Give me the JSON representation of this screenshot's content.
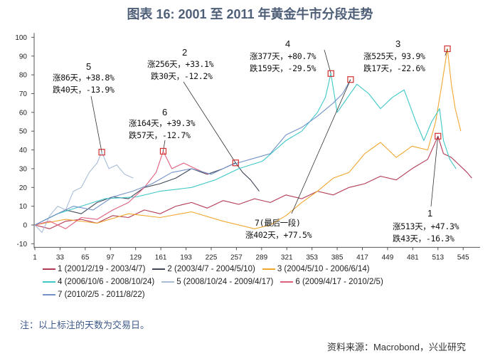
{
  "title": "图表 16: 2001 至 2011 年黄金牛市分段走势",
  "note": "注：以上标注的天数为交易日。",
  "source": "资料来源：Macrobond，兴业研究",
  "chart_data": {
    "type": "line",
    "title": "图表 16: 2001 至 2011 年黄金牛市分段走势",
    "xlabel": "",
    "ylabel": "",
    "xlim": [
      1,
      561
    ],
    "ylim": [
      -10,
      100
    ],
    "xticks": [
      1,
      33,
      65,
      97,
      129,
      161,
      193,
      225,
      257,
      289,
      321,
      353,
      385,
      417,
      449,
      481,
      513,
      545
    ],
    "yticks": [
      -10,
      0,
      10,
      20,
      30,
      40,
      50,
      60,
      70,
      80,
      90,
      100
    ],
    "grid": false,
    "legend": "bottom",
    "series": [
      {
        "name": "1 (2001/2/19 - 2003/4/7)",
        "color": "#b23a55",
        "x": [
          1,
          20,
          40,
          60,
          80,
          100,
          120,
          140,
          160,
          180,
          200,
          220,
          240,
          260,
          280,
          300,
          320,
          340,
          360,
          380,
          400,
          420,
          440,
          460,
          480,
          500,
          513,
          520,
          530,
          540,
          550,
          556
        ],
        "y": [
          0,
          -2,
          2,
          3,
          1,
          5,
          4,
          8,
          6,
          10,
          12,
          9,
          13,
          11,
          14,
          12,
          16,
          14,
          18,
          16,
          20,
          22,
          26,
          24,
          30,
          35,
          47.3,
          38,
          36,
          32,
          28,
          25
        ]
      },
      {
        "name": "2 (2003/4/7 - 2004/5/10)",
        "color": "#3f4858",
        "x": [
          1,
          20,
          40,
          60,
          80,
          100,
          120,
          140,
          160,
          180,
          200,
          220,
          240,
          256,
          265,
          275,
          286
        ],
        "y": [
          0,
          4,
          8,
          6,
          12,
          15,
          14,
          20,
          22,
          25,
          30,
          27,
          30,
          33.1,
          28,
          24,
          18
        ]
      },
      {
        "name": "3 (2004/5/10 - 2006/6/14)",
        "color": "#f0a830",
        "x": [
          1,
          40,
          80,
          120,
          160,
          200,
          240,
          280,
          300,
          320,
          340,
          360,
          380,
          400,
          420,
          440,
          460,
          480,
          500,
          510,
          518,
          525,
          530,
          535,
          542
        ],
        "y": [
          0,
          3,
          1,
          6,
          4,
          7,
          2,
          -2,
          0,
          5,
          12,
          18,
          25,
          28,
          38,
          44,
          36,
          42,
          40,
          55,
          75,
          93.9,
          75,
          62,
          50
        ]
      },
      {
        "name": "4 (2006/10/6 - 2008/10/24)",
        "color": "#3fc8c8",
        "x": [
          1,
          30,
          60,
          90,
          130,
          160,
          200,
          230,
          260,
          290,
          320,
          340,
          360,
          370,
          377,
          385,
          395,
          410,
          425,
          440,
          455,
          470,
          485,
          495,
          505,
          515,
          520,
          528,
          536
        ],
        "y": [
          0,
          6,
          10,
          14,
          15,
          18,
          20,
          24,
          30,
          34,
          45,
          50,
          60,
          68,
          80.7,
          60,
          66,
          75,
          70,
          62,
          68,
          72,
          55,
          45,
          55,
          62,
          45,
          35,
          30
        ]
      },
      {
        "name": "5 (2008/10/24 - 2009/4/17)",
        "color": "#a9bcd6",
        "x": [
          1,
          10,
          20,
          30,
          40,
          50,
          60,
          70,
          80,
          86,
          95,
          105,
          115,
          126
        ],
        "y": [
          0,
          -4,
          5,
          10,
          8,
          18,
          20,
          28,
          33,
          38.8,
          30,
          32,
          27,
          25
        ]
      },
      {
        "name": "6 (2009/4/17 - 2010/2/5)",
        "color": "#e0607e",
        "x": [
          1,
          20,
          40,
          60,
          80,
          100,
          120,
          140,
          155,
          164,
          175,
          190,
          205,
          221
        ],
        "y": [
          0,
          2,
          -2,
          4,
          3,
          8,
          12,
          20,
          28,
          39.3,
          30,
          33,
          30,
          27
        ]
      },
      {
        "name": "7 (2010/2/5 - 2011/8/22)",
        "color": "#7392c8",
        "x": [
          1,
          25,
          50,
          75,
          100,
          125,
          150,
          175,
          200,
          225,
          250,
          275,
          300,
          320,
          340,
          360,
          380,
          392,
          402
        ],
        "y": [
          0,
          5,
          10,
          8,
          15,
          18,
          22,
          28,
          30,
          27,
          32,
          35,
          38,
          48,
          52,
          58,
          65,
          70,
          77.5
        ]
      }
    ],
    "annotations": [
      {
        "label": "5",
        "lines": [
          "涨86天，+38.8%",
          "跌40天，-13.9%"
        ],
        "series": 5,
        "x": 86,
        "y": 38.8
      },
      {
        "label": "2",
        "lines": [
          "涨256天，+33.1%",
          "跌30天，-12.2%"
        ],
        "series": 2,
        "x": 256,
        "y": 33.1
      },
      {
        "label": "6",
        "lines": [
          "涨164天，+39.3%",
          "跌57天，-12.7%"
        ],
        "series": 6,
        "x": 164,
        "y": 39.3
      },
      {
        "label": "4",
        "lines": [
          "涨377天，+80.7%",
          "跌159天，-29.5%"
        ],
        "series": 4,
        "x": 377,
        "y": 80.7
      },
      {
        "label": "3",
        "lines": [
          "涨525天，93.9%",
          "跌17天，-22.6%"
        ],
        "series": 3,
        "x": 525,
        "y": 93.9
      },
      {
        "label": "7(最后一段)",
        "lines": [
          "涨402天，+77.5%"
        ],
        "series": 7,
        "x": 402,
        "y": 77.5
      },
      {
        "label": "1",
        "lines": [
          "涨513天，+47.3%",
          "跌43天，-16.3%"
        ],
        "series": 1,
        "x": 513,
        "y": 47.3
      }
    ]
  }
}
